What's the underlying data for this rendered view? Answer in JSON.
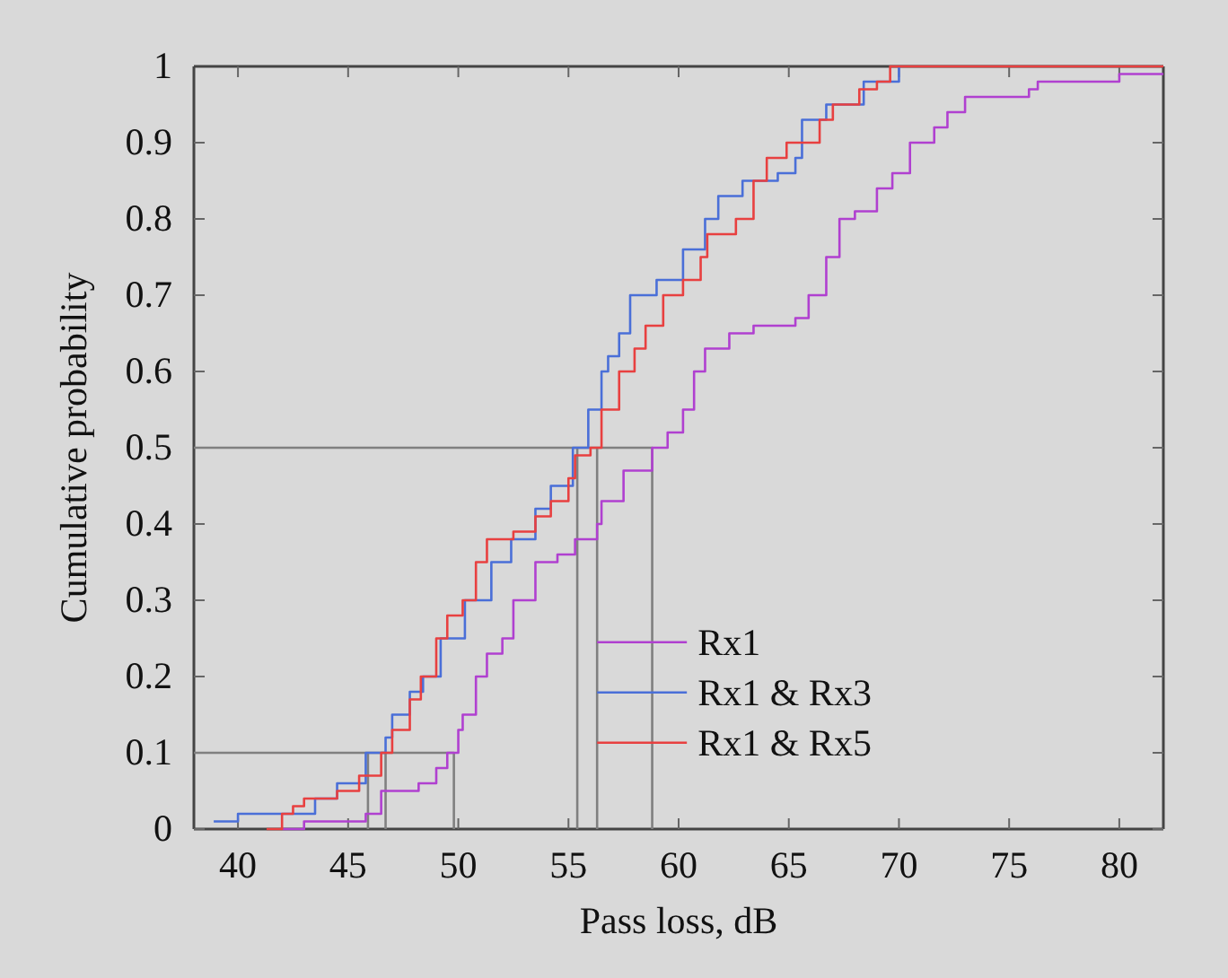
{
  "chart_data": {
    "type": "step",
    "xlabel": "Pass loss, dB",
    "ylabel": "Cumulative probability",
    "xlim": [
      38,
      82
    ],
    "ylim": [
      0,
      1
    ],
    "xticks": [
      40,
      45,
      50,
      55,
      60,
      65,
      70,
      75,
      80
    ],
    "yticks": [
      0,
      0.1,
      0.2,
      0.3,
      0.4,
      0.5,
      0.6,
      0.7,
      0.8,
      0.9,
      1
    ],
    "grid": false,
    "legend": "bottom right",
    "series": [
      {
        "type": "line",
        "color": "#808080",
        "x": [
          38,
          58.8,
          58.8
        ],
        "values": [
          0.5,
          0.5,
          0
        ]
      },
      {
        "type": "line",
        "color": "#808080",
        "x": [
          55.4,
          55.4
        ],
        "values": [
          0.5,
          0
        ]
      },
      {
        "type": "line",
        "color": "#808080",
        "x": [
          56.3,
          56.3
        ],
        "values": [
          0.5,
          0
        ]
      },
      {
        "type": "line",
        "color": "#808080",
        "x": [
          38,
          49.8,
          49.8
        ],
        "values": [
          0.1,
          0.1,
          0
        ]
      },
      {
        "type": "line",
        "color": "#808080",
        "x": [
          45.9,
          45.9
        ],
        "values": [
          0.1,
          0
        ]
      },
      {
        "type": "line",
        "color": "#808080",
        "x": [
          46.7,
          46.7
        ],
        "values": [
          0.1,
          0
        ]
      },
      {
        "name": "Rx1",
        "color": "#b040d0",
        "x": [
          42,
          43,
          45.8,
          46.5,
          48.2,
          49,
          49.5,
          50,
          50.2,
          50.8,
          51.3,
          52,
          52.5,
          53.5,
          54.5,
          55.3,
          56.3,
          56.5,
          57.5,
          58.8,
          59.5,
          60.2,
          60.7,
          61.2,
          62.3,
          63.4,
          65.3,
          65.9,
          66.7,
          67.3,
          68,
          69,
          69.7,
          70.5,
          71.6,
          72.2,
          73,
          75.9,
          76.3,
          80,
          82
        ],
        "values": [
          0,
          0.01,
          0.02,
          0.05,
          0.06,
          0.08,
          0.1,
          0.13,
          0.15,
          0.2,
          0.23,
          0.25,
          0.3,
          0.35,
          0.36,
          0.38,
          0.4,
          0.43,
          0.47,
          0.5,
          0.52,
          0.55,
          0.6,
          0.63,
          0.65,
          0.66,
          0.67,
          0.7,
          0.75,
          0.8,
          0.81,
          0.84,
          0.86,
          0.9,
          0.92,
          0.94,
          0.96,
          0.97,
          0.98,
          0.99,
          0.99
        ]
      },
      {
        "name": "Rx1 & Rx3",
        "color": "#4a6fd8",
        "x": [
          38.9,
          40,
          43.5,
          44.5,
          45.8,
          46.7,
          47,
          47.8,
          48.4,
          49.2,
          50.3,
          51.5,
          52.4,
          53.5,
          54.2,
          55.2,
          55.9,
          56.5,
          56.8,
          57.3,
          57.8,
          59,
          60.2,
          61.2,
          61.8,
          62.9,
          64.5,
          65.3,
          65.6,
          66.7,
          68.4,
          70
        ],
        "values": [
          0.01,
          0.02,
          0.04,
          0.06,
          0.1,
          0.12,
          0.15,
          0.18,
          0.2,
          0.25,
          0.3,
          0.35,
          0.38,
          0.42,
          0.45,
          0.5,
          0.55,
          0.6,
          0.62,
          0.65,
          0.7,
          0.72,
          0.76,
          0.8,
          0.83,
          0.85,
          0.86,
          0.88,
          0.93,
          0.95,
          0.98,
          1
        ]
      },
      {
        "name": "Rx1 & Rx5",
        "color": "#e84040",
        "x": [
          41.3,
          42,
          42.5,
          43,
          44.5,
          45.5,
          46.5,
          47,
          47.8,
          48.3,
          49,
          49.5,
          50.2,
          50.8,
          51.3,
          52.5,
          53.5,
          54.2,
          55,
          55.3,
          56,
          56.5,
          57.3,
          58,
          58.5,
          59.3,
          60.2,
          61,
          61.3,
          62.6,
          63.4,
          64,
          64.9,
          66.4,
          67,
          68.2,
          69,
          69.6,
          82
        ],
        "values": [
          0,
          0.02,
          0.03,
          0.04,
          0.05,
          0.07,
          0.1,
          0.13,
          0.17,
          0.2,
          0.25,
          0.28,
          0.3,
          0.35,
          0.38,
          0.39,
          0.41,
          0.43,
          0.46,
          0.49,
          0.5,
          0.55,
          0.6,
          0.63,
          0.66,
          0.7,
          0.72,
          0.75,
          0.78,
          0.8,
          0.85,
          0.88,
          0.9,
          0.93,
          0.95,
          0.97,
          0.98,
          1,
          1
        ]
      }
    ]
  }
}
